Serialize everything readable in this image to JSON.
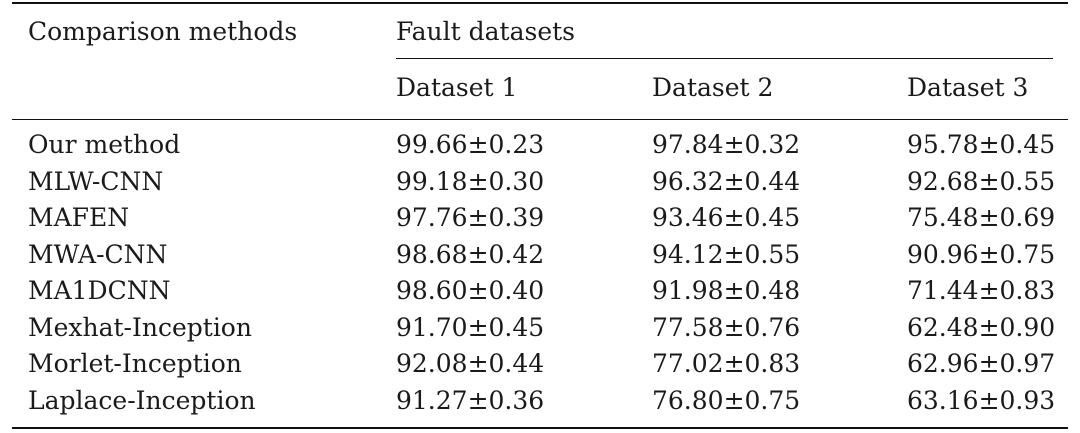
{
  "table": {
    "header": {
      "methods_label": "Comparison methods",
      "group_label": "Fault datasets",
      "columns": [
        "Dataset 1",
        "Dataset 2",
        "Dataset 3"
      ]
    },
    "rows": [
      {
        "method": "Our method",
        "values": [
          "99.66±0.23",
          "97.84±0.32",
          "95.78±0.45"
        ]
      },
      {
        "method": "MLW-CNN",
        "values": [
          "99.18±0.30",
          "96.32±0.44",
          "92.68±0.55"
        ]
      },
      {
        "method": "MAFEN",
        "values": [
          "97.76±0.39",
          "93.46±0.45",
          "75.48±0.69"
        ]
      },
      {
        "method": "MWA-CNN",
        "values": [
          "98.68±0.42",
          "94.12±0.55",
          "90.96±0.75"
        ]
      },
      {
        "method": "MA1DCNN",
        "values": [
          "98.60±0.40",
          "91.98±0.48",
          "71.44±0.83"
        ]
      },
      {
        "method": "Mexhat-Inception",
        "values": [
          "91.70±0.45",
          "77.58±0.76",
          "62.48±0.90"
        ]
      },
      {
        "method": "Morlet-Inception",
        "values": [
          "92.08±0.44",
          "77.02±0.83",
          "62.96±0.97"
        ]
      },
      {
        "method": "Laplace-Inception",
        "values": [
          "91.27±0.36",
          "76.80±0.75",
          "63.16±0.93"
        ]
      }
    ]
  }
}
